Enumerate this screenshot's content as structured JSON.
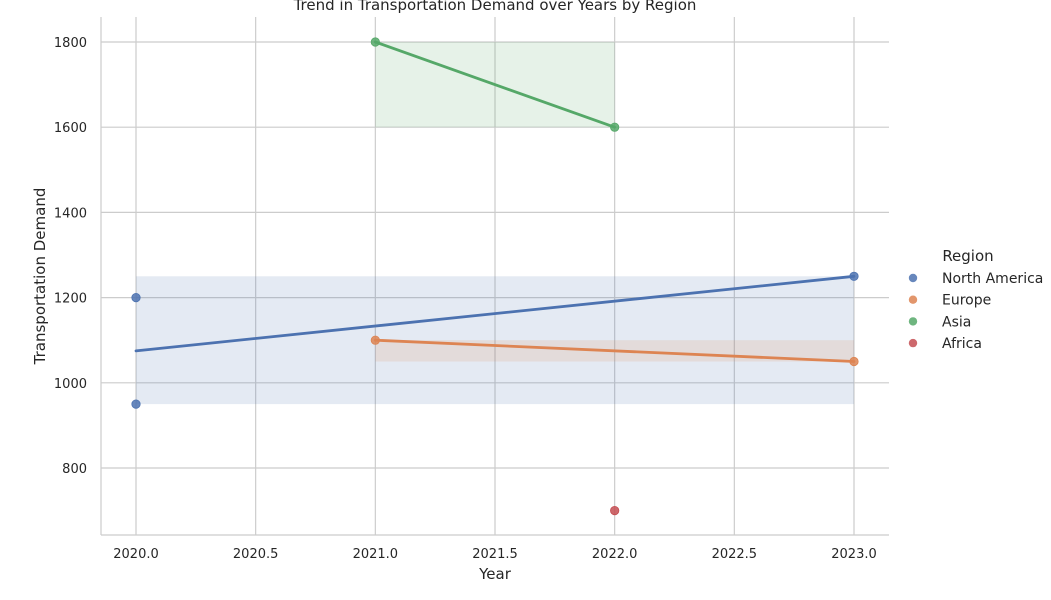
{
  "chart_data": {
    "type": "scatter",
    "title": "Trend in Transportation Demand over Years by Region",
    "xlabel": "Year",
    "ylabel": "Transportation Demand",
    "xlim": [
      1985.85,
      2023.15
    ],
    "ylim": [
      645,
      1855
    ],
    "xticks": [
      "2020.0",
      "2020.5",
      "2021.0",
      "2021.5",
      "2022.0",
      "2022.5",
      "2023.0"
    ],
    "yticks": [
      "800",
      "1000",
      "1200",
      "1400",
      "1600",
      "1800"
    ],
    "grid": true,
    "legend": {
      "title": "Region",
      "placement": "right"
    },
    "series": [
      {
        "name": "North America",
        "color": "#4c72b0",
        "points": [
          [
            2020,
            1200
          ],
          [
            2020,
            950
          ],
          [
            2023,
            1250
          ]
        ],
        "fit": [
          [
            2020,
            1075
          ],
          [
            2023,
            1250
          ]
        ],
        "band": {
          "x": [
            2020,
            2023
          ],
          "y": [
            950,
            1250
          ]
        }
      },
      {
        "name": "Europe",
        "color": "#dd8452",
        "points": [
          [
            2021,
            1100
          ],
          [
            2023,
            1050
          ]
        ],
        "fit": [
          [
            2021,
            1100
          ],
          [
            2023,
            1050
          ]
        ],
        "band": {
          "x": [
            2021,
            2023
          ],
          "y": [
            1050,
            1100
          ]
        }
      },
      {
        "name": "Asia",
        "color": "#55a868",
        "points": [
          [
            2021,
            1800
          ],
          [
            2022,
            1600
          ]
        ],
        "fit": [
          [
            2021,
            1800
          ],
          [
            2022,
            1600
          ]
        ],
        "band": {
          "x": [
            2021,
            2022
          ],
          "y": [
            1600,
            1800
          ]
        }
      },
      {
        "name": "Africa",
        "color": "#c44e52",
        "points": [
          [
            2022,
            700
          ]
        ],
        "fit": null,
        "band": null
      }
    ]
  }
}
